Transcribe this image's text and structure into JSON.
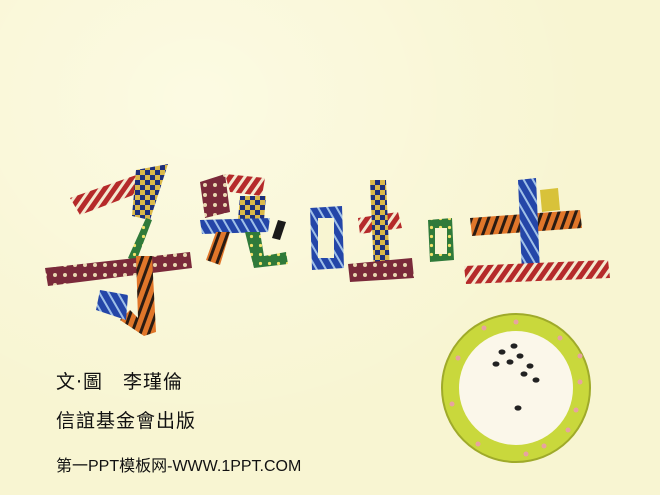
{
  "slide": {
    "background_color": "#f8f5d2",
    "title_artwork": {
      "text": "子兒,吐吐",
      "style": "patchwork fabric lettering"
    },
    "credits": {
      "author": "文·圖　李瑾倫",
      "publisher": "信誼基金會出版"
    },
    "source": "第一PPT模板网-WWW.1PPT.COM",
    "plate_illustration": {
      "icon": "plate-with-seeds-icon",
      "rim_color": "#c9d83c",
      "seed_count": 9
    }
  }
}
